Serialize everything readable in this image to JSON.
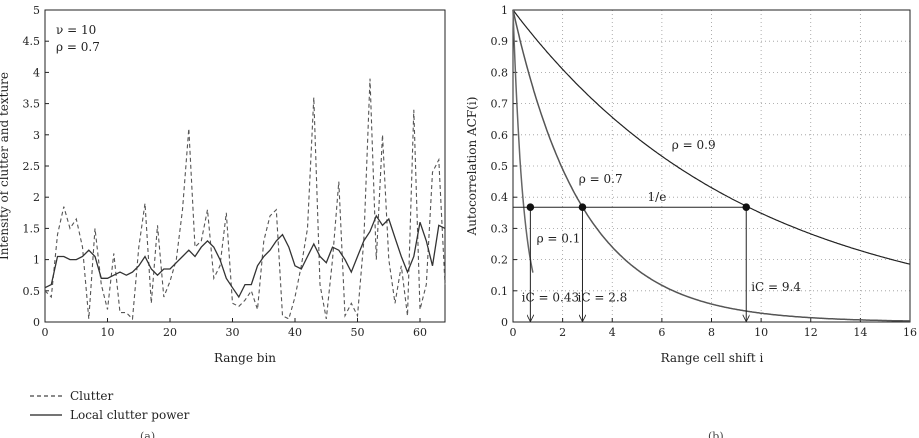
{
  "chart_data": [
    {
      "type": "line",
      "xlabel": "Range bin",
      "ylabel": "Intensity of clutter and texture",
      "xlim": [
        0,
        64
      ],
      "ylim": [
        0,
        5
      ],
      "xticks": [
        "0",
        "10",
        "20",
        "30",
        "40",
        "50",
        "60"
      ],
      "yticks": [
        "0",
        "0.5",
        "1",
        "1.5",
        "2",
        "2.5",
        "3",
        "3.5",
        "4",
        "4.5",
        "5"
      ],
      "annotations": [
        "ν = 10",
        "ρ = 0.7"
      ],
      "grid": false,
      "legend_position": "below",
      "caption": "(a)",
      "series": [
        {
          "name": "Clutter",
          "style": "dashed",
          "x": [
            0,
            1,
            2,
            3,
            4,
            5,
            6,
            7,
            8,
            9,
            10,
            11,
            12,
            13,
            14,
            15,
            16,
            17,
            18,
            19,
            20,
            21,
            22,
            23,
            24,
            25,
            26,
            27,
            28,
            29,
            30,
            31,
            32,
            33,
            34,
            35,
            36,
            37,
            38,
            39,
            40,
            41,
            42,
            43,
            44,
            45,
            46,
            47,
            48,
            49,
            50,
            51,
            52,
            53,
            54,
            55,
            56,
            57,
            58,
            59,
            60,
            61,
            62,
            63,
            64
          ],
          "values": [
            0.5,
            0.4,
            1.4,
            1.85,
            1.5,
            1.65,
            1.2,
            0.05,
            1.5,
            0.6,
            0.2,
            1.1,
            0.15,
            0.15,
            0.05,
            1.2,
            1.9,
            0.3,
            1.55,
            0.4,
            0.65,
            1.0,
            1.8,
            3.1,
            1.2,
            1.3,
            1.8,
            0.7,
            0.9,
            1.75,
            0.3,
            0.25,
            0.35,
            0.5,
            0.2,
            1.3,
            1.7,
            1.8,
            0.1,
            0.05,
            0.4,
            0.9,
            1.5,
            3.6,
            0.6,
            0.05,
            1.0,
            2.25,
            0.1,
            0.3,
            0.1,
            1.3,
            3.9,
            1.0,
            3.0,
            1.0,
            0.3,
            0.9,
            0.1,
            3.4,
            0.2,
            0.6,
            2.4,
            2.6,
            0.6
          ]
        },
        {
          "name": "Local clutter power",
          "style": "solid",
          "x": [
            0,
            1,
            2,
            3,
            4,
            5,
            6,
            7,
            8,
            9,
            10,
            11,
            12,
            13,
            14,
            15,
            16,
            17,
            18,
            19,
            20,
            21,
            22,
            23,
            24,
            25,
            26,
            27,
            28,
            29,
            30,
            31,
            32,
            33,
            34,
            35,
            36,
            37,
            38,
            39,
            40,
            41,
            42,
            43,
            44,
            45,
            46,
            47,
            48,
            49,
            50,
            51,
            52,
            53,
            54,
            55,
            56,
            57,
            58,
            59,
            60,
            61,
            62,
            63,
            64
          ],
          "values": [
            0.55,
            0.6,
            1.05,
            1.05,
            1.0,
            1.0,
            1.05,
            1.15,
            1.05,
            0.7,
            0.7,
            0.75,
            0.8,
            0.75,
            0.8,
            0.9,
            1.05,
            0.85,
            0.75,
            0.85,
            0.85,
            0.95,
            1.05,
            1.15,
            1.05,
            1.2,
            1.3,
            1.2,
            1.0,
            0.7,
            0.55,
            0.4,
            0.6,
            0.6,
            0.9,
            1.05,
            1.15,
            1.3,
            1.4,
            1.2,
            0.9,
            0.85,
            1.05,
            1.25,
            1.05,
            0.95,
            1.2,
            1.15,
            1.0,
            0.8,
            1.05,
            1.3,
            1.45,
            1.7,
            1.55,
            1.65,
            1.35,
            1.05,
            0.8,
            1.05,
            1.6,
            1.3,
            0.9,
            1.55,
            1.5
          ]
        }
      ]
    },
    {
      "type": "line",
      "xlabel": "Range cell shift i",
      "ylabel": "Autocorrelation ACF(i)",
      "xlim": [
        0,
        16
      ],
      "ylim": [
        0,
        1
      ],
      "xticks": [
        "0",
        "2",
        "4",
        "6",
        "8",
        "10",
        "12",
        "14",
        "16"
      ],
      "yticks": [
        "0",
        "0.1",
        "0.2",
        "0.3",
        "0.4",
        "0.5",
        "0.6",
        "0.7",
        "0.8",
        "0.9",
        "1"
      ],
      "grid": true,
      "caption": "(b)",
      "threshold": {
        "y": 0.3679,
        "label": "1/e"
      },
      "series": [
        {
          "name": "ρ = 0.9",
          "rho": 0.9
        },
        {
          "name": "ρ = 0.7",
          "rho": 0.7
        },
        {
          "name": "ρ = 0.1",
          "rho": 0.1
        }
      ],
      "markers": [
        {
          "x": 0.43,
          "y": 0.3679,
          "label": "iC = 0.43"
        },
        {
          "x": 2.8,
          "y": 0.3679,
          "label": "iC = 2.8"
        },
        {
          "x": 9.4,
          "y": 0.3679,
          "label": "iC = 9.4"
        }
      ]
    }
  ]
}
